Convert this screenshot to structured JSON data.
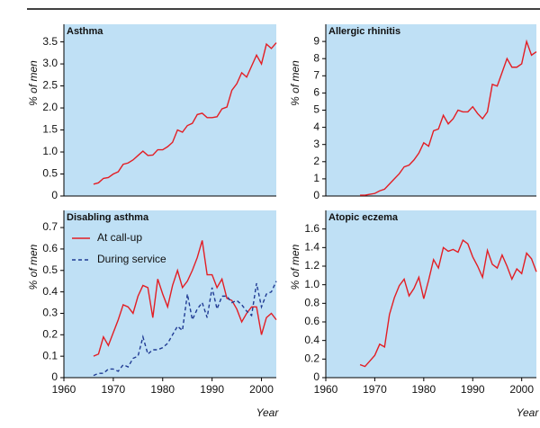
{
  "chart_data": [
    {
      "type": "line",
      "title": "Asthma",
      "ylabel": "% of men",
      "x": [
        1966,
        1967,
        1968,
        1969,
        1970,
        1971,
        1972,
        1973,
        1974,
        1975,
        1976,
        1977,
        1978,
        1979,
        1980,
        1981,
        1982,
        1983,
        1984,
        1985,
        1986,
        1987,
        1988,
        1989,
        1990,
        1991,
        1992,
        1993,
        1994,
        1995,
        1996,
        1997,
        1998,
        1999,
        2000,
        2001,
        2002,
        2003
      ],
      "series": [
        {
          "name": "At call-up",
          "color": "#e31e24",
          "values": [
            0.27,
            0.3,
            0.4,
            0.42,
            0.5,
            0.55,
            0.72,
            0.75,
            0.82,
            0.92,
            1.02,
            0.92,
            0.93,
            1.05,
            1.05,
            1.12,
            1.22,
            1.5,
            1.45,
            1.6,
            1.65,
            1.85,
            1.88,
            1.78,
            1.78,
            1.8,
            1.98,
            2.02,
            2.4,
            2.55,
            2.8,
            2.7,
            2.95,
            3.2,
            3.0,
            3.45,
            3.35,
            3.48
          ]
        }
      ],
      "xlim": [
        1960,
        2003
      ],
      "ylim": [
        0,
        3.9
      ],
      "yticks": [
        0,
        0.5,
        {
          "value": 1,
          "label": "1.0"
        },
        1.5,
        {
          "value": 2,
          "label": "2.0"
        },
        2.5,
        {
          "value": 3,
          "label": "3.0"
        },
        3.5
      ]
    },
    {
      "type": "line",
      "title": "Allergic rhinitis",
      "ylabel": "% of men",
      "x": [
        1967,
        1968,
        1969,
        1970,
        1971,
        1972,
        1973,
        1974,
        1975,
        1976,
        1977,
        1978,
        1979,
        1980,
        1981,
        1982,
        1983,
        1984,
        1985,
        1986,
        1987,
        1988,
        1989,
        1990,
        1991,
        1992,
        1993,
        1994,
        1995,
        1996,
        1997,
        1998,
        1999,
        2000,
        2001,
        2002,
        2003
      ],
      "series": [
        {
          "name": "At call-up",
          "color": "#e31e24",
          "values": [
            0.05,
            0.05,
            0.1,
            0.15,
            0.3,
            0.4,
            0.7,
            1.0,
            1.3,
            1.7,
            1.8,
            2.1,
            2.5,
            3.1,
            2.9,
            3.8,
            3.9,
            4.7,
            4.2,
            4.5,
            5.0,
            4.9,
            4.9,
            5.2,
            4.8,
            4.5,
            4.9,
            6.5,
            6.4,
            7.2,
            8.0,
            7.5,
            7.5,
            7.7,
            9.0,
            8.2,
            8.4
          ]
        }
      ],
      "xlim": [
        1960,
        2003
      ],
      "ylim": [
        0,
        10
      ],
      "yticks": [
        0,
        1,
        2,
        3,
        4,
        5,
        6,
        7,
        8,
        9
      ]
    },
    {
      "type": "line",
      "title": "Disabling asthma",
      "ylabel": "% of men",
      "xlabel": "Year",
      "legend": "upper left",
      "x": [
        1966,
        1967,
        1968,
        1969,
        1970,
        1971,
        1972,
        1973,
        1974,
        1975,
        1976,
        1977,
        1978,
        1979,
        1980,
        1981,
        1982,
        1983,
        1984,
        1985,
        1986,
        1987,
        1988,
        1989,
        1990,
        1991,
        1992,
        1993,
        1994,
        1995,
        1996,
        1997,
        1998,
        1999,
        2000,
        2001,
        2002,
        2003
      ],
      "series": [
        {
          "name": "At call-up",
          "color": "#e31e24",
          "dash": false,
          "values": [
            0.1,
            0.11,
            0.19,
            0.15,
            0.21,
            0.27,
            0.34,
            0.33,
            0.3,
            0.38,
            0.43,
            0.42,
            0.28,
            0.46,
            0.39,
            0.33,
            0.43,
            0.5,
            0.42,
            0.45,
            0.5,
            0.56,
            0.64,
            0.48,
            0.48,
            0.42,
            0.46,
            0.37,
            0.36,
            0.32,
            0.26,
            0.3,
            0.33,
            0.33,
            0.2,
            0.28,
            0.3,
            0.27
          ]
        },
        {
          "name": "During service",
          "color": "#1f3a93",
          "dash": true,
          "values": [
            0.01,
            0.02,
            0.02,
            0.04,
            0.04,
            0.03,
            0.06,
            0.05,
            0.09,
            0.1,
            0.19,
            0.11,
            0.13,
            0.13,
            0.14,
            0.16,
            0.2,
            0.24,
            0.22,
            0.39,
            0.27,
            0.32,
            0.35,
            0.28,
            0.42,
            0.32,
            0.38,
            0.38,
            0.35,
            0.36,
            0.34,
            0.31,
            0.29,
            0.44,
            0.33,
            0.39,
            0.4,
            0.45
          ]
        }
      ],
      "xlim": [
        1960,
        2003
      ],
      "ylim": [
        0,
        0.78
      ],
      "xticks": [
        1960,
        1970,
        1980,
        1990,
        2000
      ],
      "yticks": [
        0,
        0.1,
        0.2,
        0.3,
        0.4,
        0.5,
        0.6,
        0.7
      ]
    },
    {
      "type": "line",
      "title": "Atopic eczema",
      "ylabel": "% of men",
      "xlabel": "Year",
      "x": [
        1967,
        1968,
        1969,
        1970,
        1971,
        1972,
        1973,
        1974,
        1975,
        1976,
        1977,
        1978,
        1979,
        1980,
        1981,
        1982,
        1983,
        1984,
        1985,
        1986,
        1987,
        1988,
        1989,
        1990,
        1991,
        1992,
        1993,
        1994,
        1995,
        1996,
        1997,
        1998,
        1999,
        2000,
        2001,
        2002,
        2003
      ],
      "series": [
        {
          "name": "At call-up",
          "color": "#e31e24",
          "values": [
            0.14,
            0.12,
            0.18,
            0.24,
            0.36,
            0.33,
            0.68,
            0.86,
            0.99,
            1.06,
            0.88,
            0.96,
            1.08,
            0.85,
            1.05,
            1.27,
            1.18,
            1.4,
            1.36,
            1.38,
            1.35,
            1.48,
            1.44,
            1.3,
            1.2,
            1.08,
            1.37,
            1.22,
            1.18,
            1.32,
            1.2,
            1.06,
            1.17,
            1.12,
            1.34,
            1.28,
            1.14
          ]
        }
      ],
      "xlim": [
        1960,
        2003
      ],
      "ylim": [
        0,
        1.8
      ],
      "xticks": [
        1960,
        1970,
        1980,
        1990,
        2000
      ],
      "yticks": [
        0,
        0.2,
        0.4,
        0.6,
        0.8,
        {
          "value": 1,
          "label": "1.0"
        },
        1.2,
        1.4,
        1.6
      ]
    }
  ]
}
